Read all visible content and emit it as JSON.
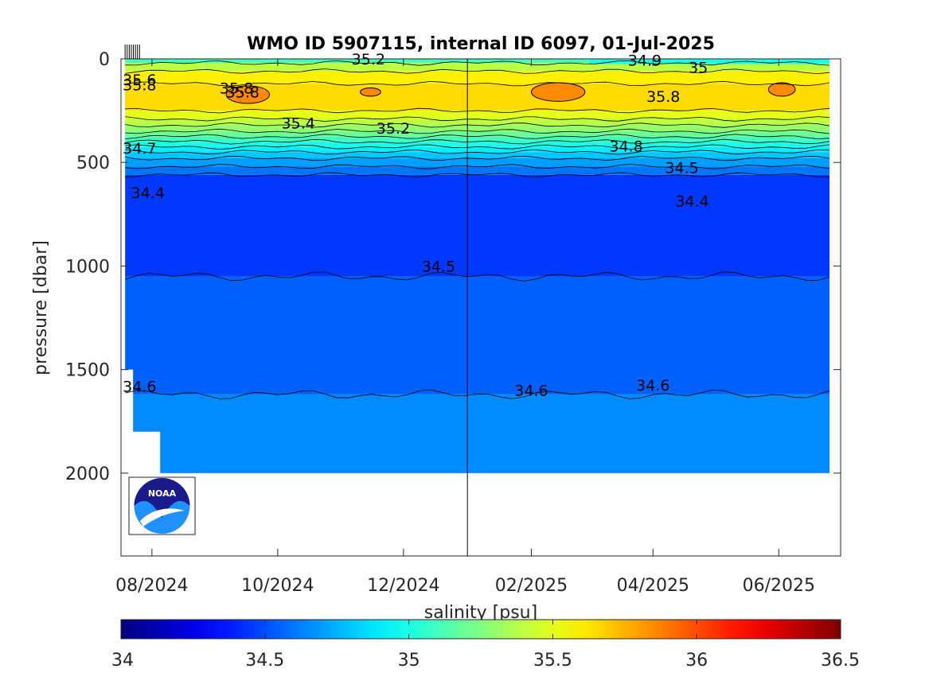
{
  "chart_data": {
    "type": "heatmap",
    "title": "WMO ID 5907115, internal ID 6097, 01-Jul-2025",
    "ylabel": "pressure [dbar]",
    "ylim": [
      2400,
      0
    ],
    "y_ticks": [
      0,
      500,
      1000,
      1500,
      2000
    ],
    "y_tick_labels": [
      "0",
      "500",
      "1000",
      "1500",
      "2000"
    ],
    "x_ticks": [
      "2024-08-01",
      "2024-10-01",
      "2024-12-01",
      "2025-02-01",
      "2025-04-01",
      "2025-06-01"
    ],
    "x_tick_labels": [
      "08/2024",
      "10/2024",
      "12/2024",
      "02/2025",
      "04/2025",
      "06/2025"
    ],
    "xlim": [
      "2024-07-17",
      "2025-07-01"
    ],
    "date_marker": "2025-01-01",
    "colorbar": {
      "label": "salinity [psu]",
      "range": [
        34,
        36.5
      ],
      "ticks": [
        34,
        34.5,
        35,
        35.5,
        36,
        36.5
      ],
      "tick_labels": [
        "34",
        "34.5",
        "35",
        "35.5",
        "36",
        "36.5"
      ],
      "colormap": "jet"
    },
    "contour_labels": [
      {
        "text": "35.2",
        "date": "2024-11-14",
        "p": 0
      },
      {
        "text": "34.9",
        "date": "2025-03-28",
        "p": 5
      },
      {
        "text": "35",
        "date": "2025-04-23",
        "p": 40
      },
      {
        "text": "35.6",
        "date": "2024-07-26",
        "p": 100
      },
      {
        "text": "35.8",
        "date": "2024-07-26",
        "p": 125
      },
      {
        "text": "35.8",
        "date": "2024-09-11",
        "p": 140
      },
      {
        "text": "35.8",
        "date": "2024-09-14",
        "p": 160
      },
      {
        "text": "35.8",
        "date": "2025-04-06",
        "p": 180
      },
      {
        "text": "35.4",
        "date": "2024-10-11",
        "p": 310
      },
      {
        "text": "35.2",
        "date": "2024-11-26",
        "p": 335
      },
      {
        "text": "34.7",
        "date": "2024-07-26",
        "p": 430
      },
      {
        "text": "34.8",
        "date": "2025-03-19",
        "p": 420
      },
      {
        "text": "34.5",
        "date": "2025-04-15",
        "p": 525
      },
      {
        "text": "34.4",
        "date": "2024-07-30",
        "p": 645
      },
      {
        "text": "34.4",
        "date": "2025-04-20",
        "p": 685
      },
      {
        "text": "34.5",
        "date": "2024-12-18",
        "p": 1000
      },
      {
        "text": "34.6",
        "date": "2024-07-26",
        "p": 1580
      },
      {
        "text": "34.6",
        "date": "2025-02-01",
        "p": 1600
      },
      {
        "text": "34.6",
        "date": "2025-04-01",
        "p": 1575
      }
    ],
    "salinity_profile": [
      {
        "p_top": 0,
        "p_bottom": 20,
        "salinity": 35.1
      },
      {
        "p_top": 20,
        "p_bottom": 60,
        "salinity": 35.4
      },
      {
        "p_top": 60,
        "p_bottom": 120,
        "salinity": 35.6
      },
      {
        "p_top": 120,
        "p_bottom": 250,
        "salinity": 35.65
      },
      {
        "p_top": 250,
        "p_bottom": 290,
        "salinity": 35.5
      },
      {
        "p_top": 290,
        "p_bottom": 320,
        "salinity": 35.4
      },
      {
        "p_top": 320,
        "p_bottom": 350,
        "salinity": 35.3
      },
      {
        "p_top": 350,
        "p_bottom": 375,
        "salinity": 35.2
      },
      {
        "p_top": 375,
        "p_bottom": 400,
        "salinity": 35.1
      },
      {
        "p_top": 400,
        "p_bottom": 425,
        "salinity": 35.0
      },
      {
        "p_top": 425,
        "p_bottom": 450,
        "salinity": 34.9
      },
      {
        "p_top": 450,
        "p_bottom": 480,
        "salinity": 34.8
      },
      {
        "p_top": 480,
        "p_bottom": 520,
        "salinity": 34.7
      },
      {
        "p_top": 520,
        "p_bottom": 560,
        "salinity": 34.6
      },
      {
        "p_top": 560,
        "p_bottom": 1050,
        "salinity": 34.45
      },
      {
        "p_top": 1050,
        "p_bottom": 1620,
        "salinity": 34.55
      },
      {
        "p_top": 1620,
        "p_bottom": 2000,
        "salinity": 34.65
      }
    ],
    "orange_patches": [
      {
        "date_start": "2024-09-06",
        "date_end": "2024-09-27",
        "p_top": 130,
        "p_bottom": 215
      },
      {
        "date_start": "2024-11-10",
        "date_end": "2024-11-20",
        "p_top": 140,
        "p_bottom": 180
      },
      {
        "date_start": "2025-02-01",
        "date_end": "2025-02-27",
        "p_top": 115,
        "p_bottom": 205
      },
      {
        "date_start": "2025-05-27",
        "date_end": "2025-06-09",
        "p_top": 115,
        "p_bottom": 180
      }
    ],
    "profile_dates": [
      "2024-07-19",
      "2024-07-20",
      "2024-07-21",
      "2024-07-22",
      "2024-07-23",
      "2024-07-24",
      "2024-07-25",
      "2024-07-26"
    ],
    "logo": {
      "text": "NOAA",
      "colors": [
        "#1a1a8c",
        "#1e90ff"
      ]
    }
  }
}
